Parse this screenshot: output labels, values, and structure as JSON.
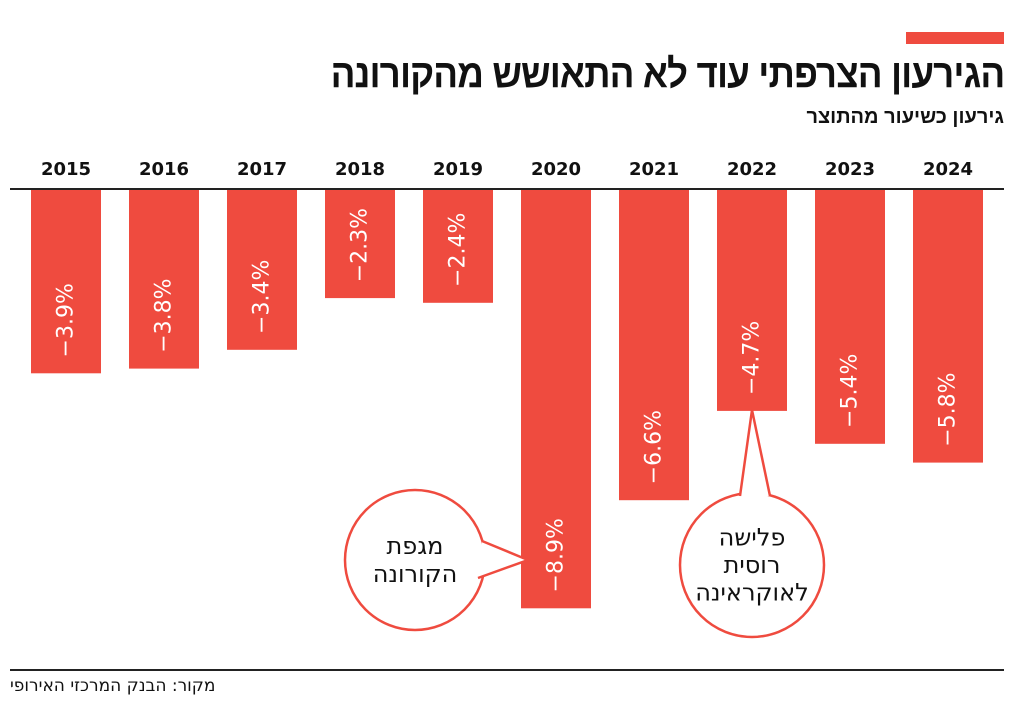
{
  "title": "הגירעון הצרפתי עוד לא התאושש מהקורונה",
  "subtitle": "גירעון כשיעור מהתוצר",
  "source": "מקור: הבנק המרכזי האירופי",
  "colors": {
    "bar": "#ef4b3f",
    "accent": "#ef4b3f",
    "text": "#111111"
  },
  "chart_data": {
    "type": "bar",
    "title": "הגירעון הצרפתי עוד לא התאושש מהקורונה",
    "subtitle": "גירעון כשיעור מהתוצר",
    "categories": [
      "2015",
      "2016",
      "2017",
      "2018",
      "2019",
      "2020",
      "2021",
      "2022",
      "2023",
      "2024"
    ],
    "values": [
      -3.9,
      -3.8,
      -3.4,
      -2.3,
      -2.4,
      -8.9,
      -6.6,
      -4.7,
      -5.4,
      -5.8
    ],
    "data_labels": [
      "−3.9%",
      "−3.8%",
      "−3.4%",
      "−2.3%",
      "−2.4%",
      "−8.9%",
      "−6.6%",
      "−4.7%",
      "−5.4%",
      "−5.8%"
    ],
    "unit": "%",
    "ylim": [
      -9,
      0
    ],
    "grid": false,
    "annotations": [
      {
        "category": "2020",
        "lines": [
          "מגפת",
          "הקורונה"
        ]
      },
      {
        "category": "2022",
        "lines": [
          "פלישה",
          "רוסית",
          "לאוקראינה"
        ]
      }
    ]
  }
}
